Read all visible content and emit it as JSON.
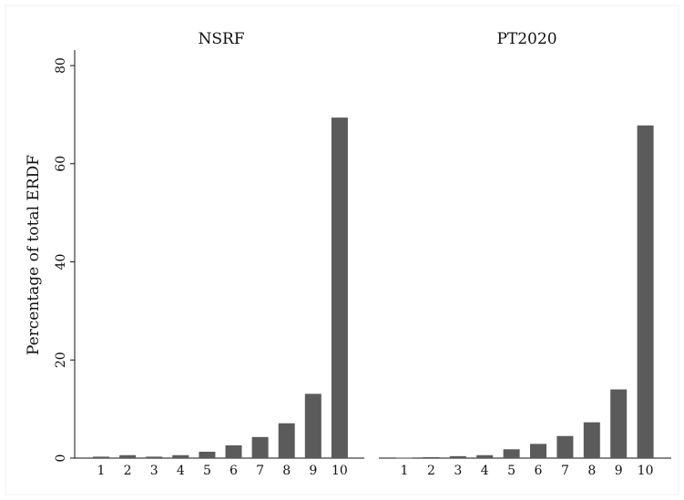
{
  "chart_data": {
    "type": "bar",
    "ylabel": "Percentage of total ERDF",
    "ylim": [
      0,
      80
    ],
    "yticks": [
      0,
      20,
      40,
      60,
      80
    ],
    "grid": false,
    "categories": [
      "1",
      "2",
      "3",
      "4",
      "5",
      "6",
      "7",
      "8",
      "9",
      "10"
    ],
    "bar_color": "#5b5b5b",
    "panels": [
      {
        "title": "NSRF",
        "values": [
          0.3,
          0.6,
          0.3,
          0.6,
          1.3,
          2.6,
          4.3,
          7.1,
          13.1,
          69.4
        ]
      },
      {
        "title": "PT2020",
        "values": [
          0.1,
          0.2,
          0.4,
          0.6,
          1.8,
          2.9,
          4.5,
          7.3,
          14.0,
          67.8
        ]
      }
    ]
  }
}
